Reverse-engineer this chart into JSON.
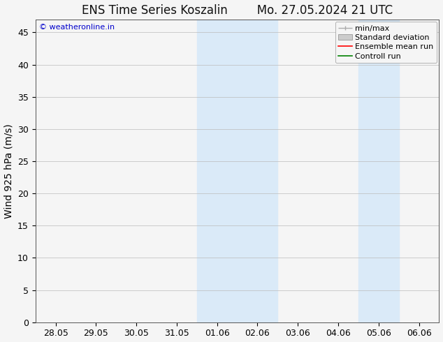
{
  "title_left": "ENS Time Series Koszalin",
  "title_right": "Mo. 27.05.2024 21 UTC",
  "ylabel": "Wind 925 hPa (m/s)",
  "watermark": "© weatheronline.in",
  "xtick_labels": [
    "28.05",
    "29.05",
    "30.05",
    "31.05",
    "01.06",
    "02.06",
    "03.06",
    "04.06",
    "05.06",
    "06.06"
  ],
  "ytick_values": [
    0,
    5,
    10,
    15,
    20,
    25,
    30,
    35,
    40,
    45
  ],
  "ymax": 47,
  "ymin": 0,
  "shade_regions": [
    {
      "xstart": 4,
      "xend": 6
    },
    {
      "xstart": 8,
      "xend": 9
    }
  ],
  "shade_color": "#daeaf8",
  "bg_color": "#f5f5f5",
  "plot_bg_color": "#f5f5f5",
  "grid_color": "#bbbbbb",
  "legend_items": [
    {
      "label": "min/max"
    },
    {
      "label": "Standard deviation"
    },
    {
      "label": "Ensemble mean run"
    },
    {
      "label": "Controll run"
    }
  ],
  "minmax_color": "#aaaaaa",
  "stddev_color": "#cccccc",
  "ensemble_color": "#ff0000",
  "control_color": "#008000",
  "watermark_color": "#0000cc",
  "title_fontsize": 12,
  "axis_fontsize": 10,
  "tick_fontsize": 9,
  "legend_fontsize": 8,
  "watermark_fontsize": 8
}
